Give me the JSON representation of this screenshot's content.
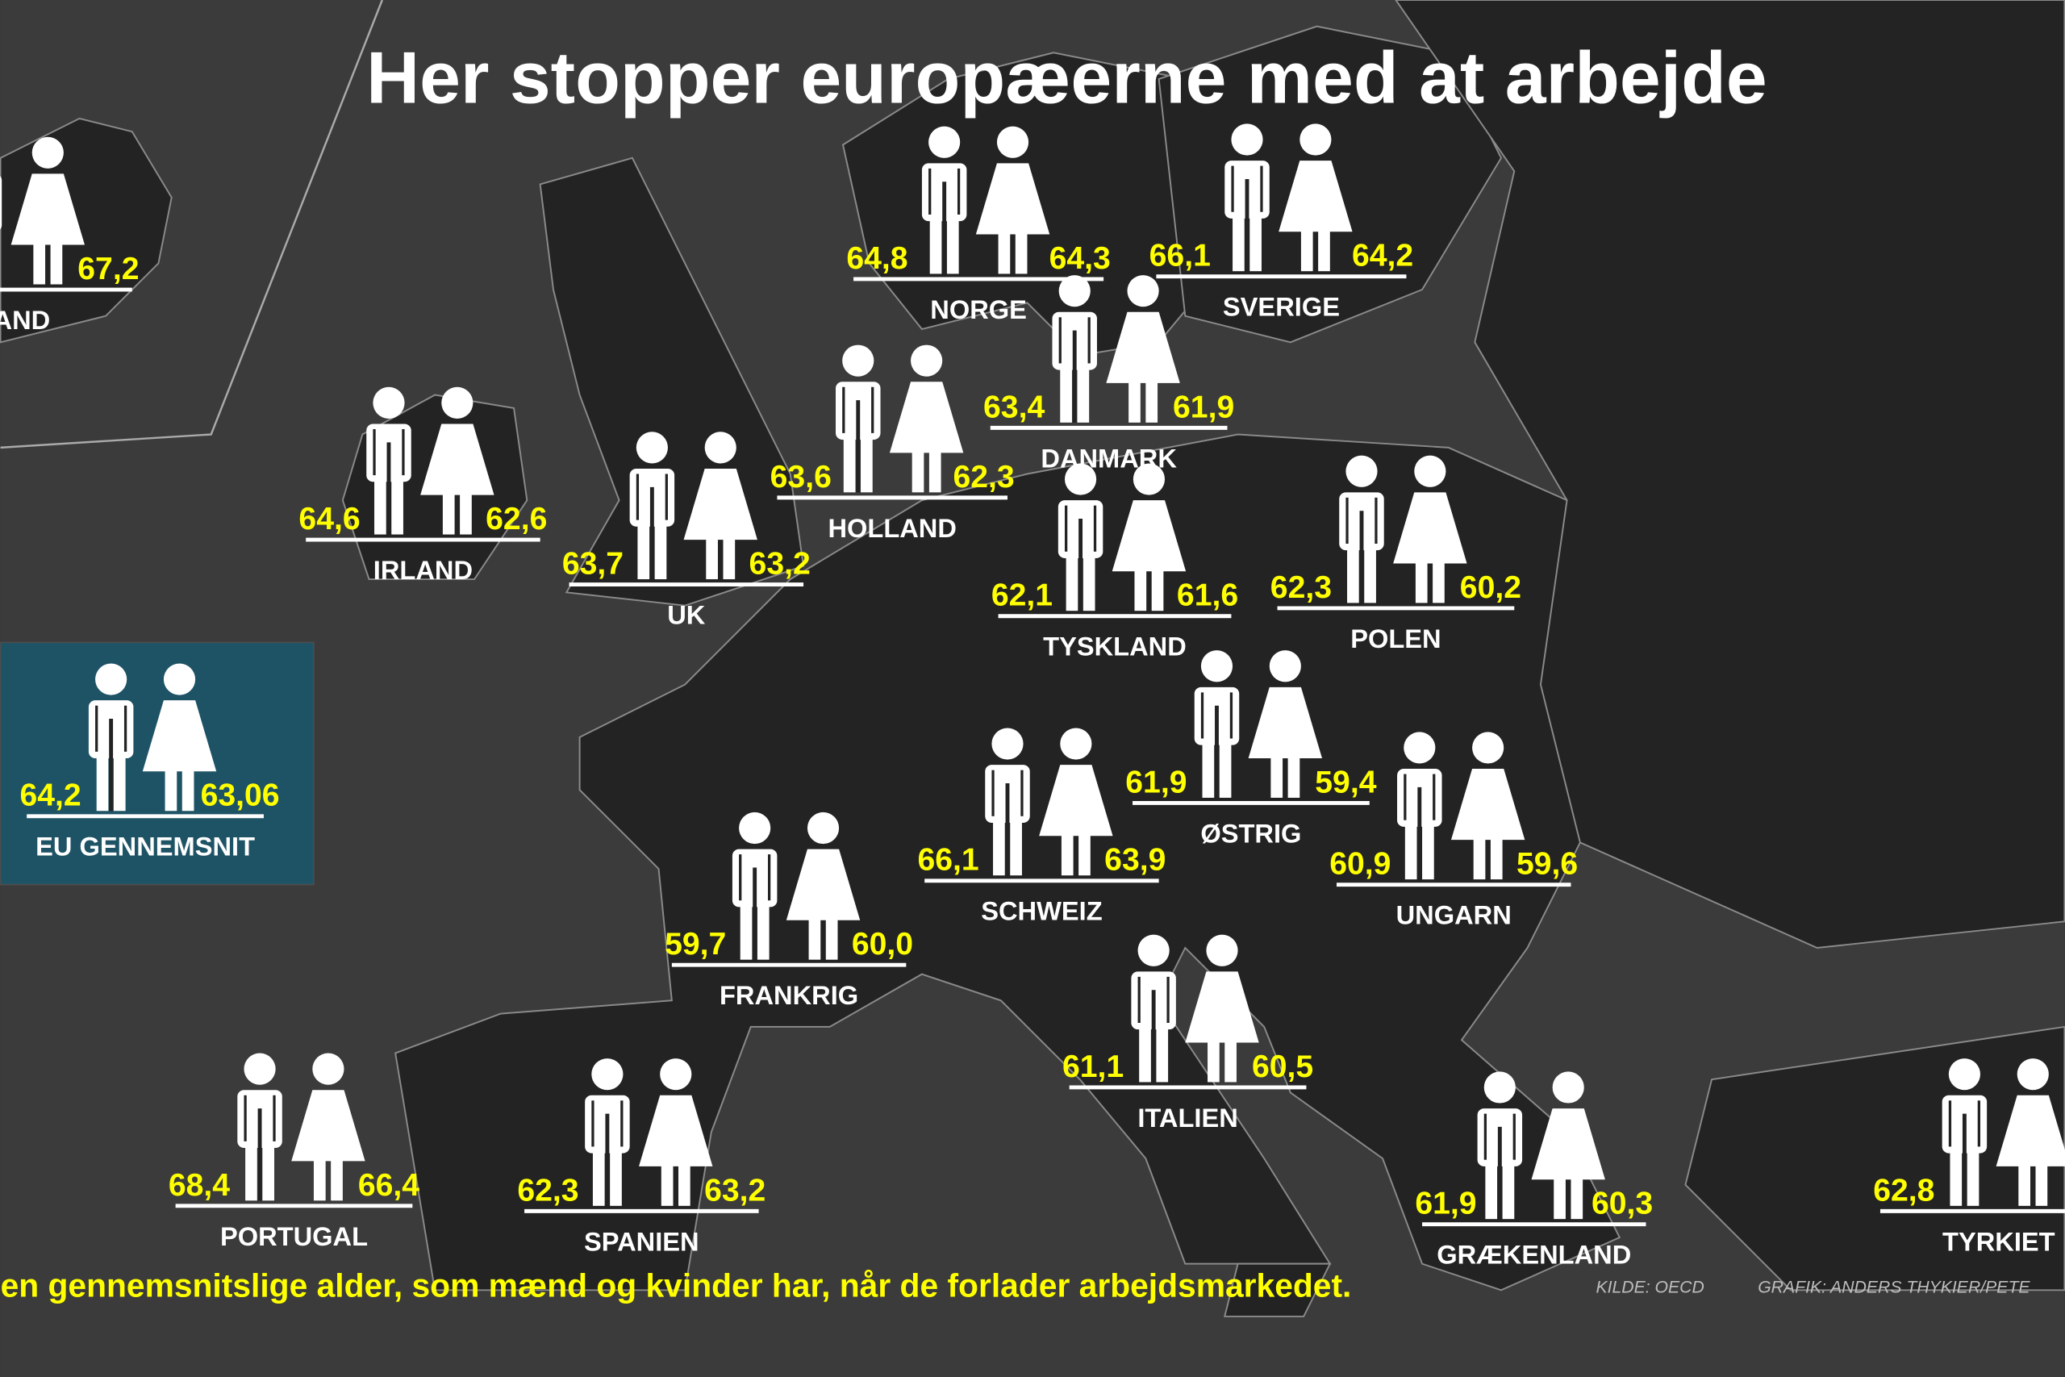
{
  "title": "Her stopper europæerne med at arbejde",
  "countries": [
    {
      "name": "LAND",
      "women": "67,2"
    },
    {
      "name": "NORGE",
      "men": "64,8",
      "women": "64,3"
    },
    {
      "name": "SVERIGE",
      "men": "66,1",
      "women": "64,2"
    },
    {
      "name": "DANMARK",
      "men": "63,4",
      "women": "61,9"
    },
    {
      "name": "HOLLAND",
      "men": "63,6",
      "women": "62,3"
    },
    {
      "name": "IRLAND",
      "men": "64,6",
      "women": "62,6"
    },
    {
      "name": "UK",
      "men": "63,7",
      "women": "63,2"
    },
    {
      "name": "TYSKLAND",
      "men": "62,1",
      "women": "61,6"
    },
    {
      "name": "POLEN",
      "men": "62,3",
      "women": "60,2"
    },
    {
      "name": "ØSTRIG",
      "men": "61,9",
      "women": "59,4"
    },
    {
      "name": "SCHWEIZ",
      "men": "66,1",
      "women": "63,9"
    },
    {
      "name": "UNGARN",
      "men": "60,9",
      "women": "59,6"
    },
    {
      "name": "FRANKRIG",
      "men": "59,7",
      "women": "60,0"
    },
    {
      "name": "ITALIEN",
      "men": "61,1",
      "women": "60,5"
    },
    {
      "name": "PORTUGAL",
      "men": "68,4",
      "women": "66,4"
    },
    {
      "name": "SPANIEN",
      "men": "62,3",
      "women": "63,2"
    },
    {
      "name": "GRÆKENLAND",
      "men": "61,9",
      "women": "60,3"
    },
    {
      "name": "TYRKIET",
      "men": "62,8"
    }
  ],
  "eu_average": {
    "name": "EU GENNEMSNIT",
    "men": "64,2",
    "women": "63,06"
  },
  "footer": {
    "caption": "en gennemsnitslige alder, som mænd og kvinder har, når de forlader arbejdsmarkedet.",
    "source": "KILDE: OECD",
    "credit": "GRAFIK: ANDERS THYKIER/PETE"
  }
}
